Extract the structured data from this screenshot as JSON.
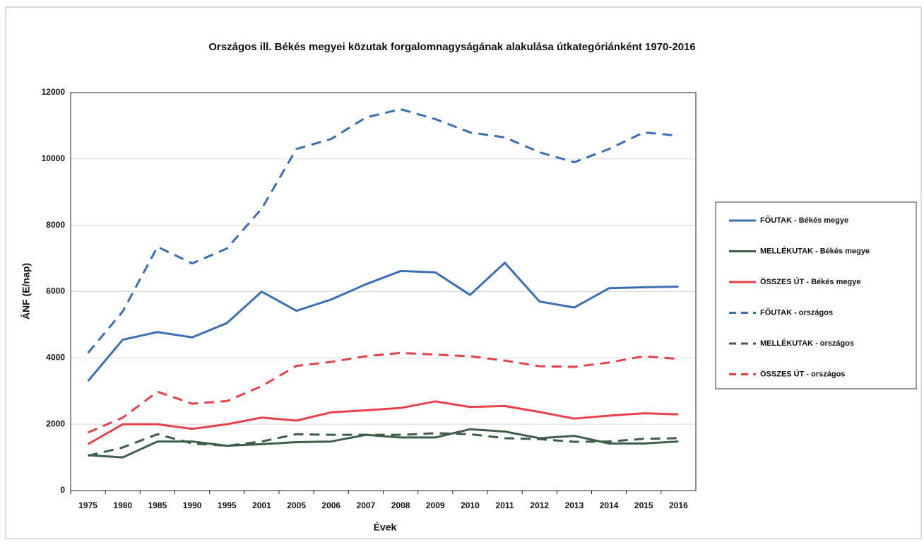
{
  "chart_data": {
    "type": "line",
    "title": "Országos ill. Békés megyei közutak forgalomnagyságának alakulása útkategóriánként 1970-2016",
    "x_label": "Évek",
    "y_label": "ÁNF (E/nap)",
    "categories": [
      "1975",
      "1980",
      "1985",
      "1990",
      "1995",
      "2001",
      "2005",
      "2006",
      "2007",
      "2008",
      "2009",
      "2010",
      "2011",
      "2012",
      "2013",
      "2014",
      "2015",
      "2016"
    ],
    "series": [
      {
        "name": "FŐUTAK - Békés megye",
        "color": "#3a6fb5",
        "dashed": false,
        "values": [
          3300,
          4550,
          4780,
          4620,
          5050,
          6000,
          5420,
          5760,
          6220,
          6620,
          6580,
          5900,
          6870,
          5700,
          5520,
          6100,
          6130,
          6150
        ]
      },
      {
        "name": "MELLÉKUTAK - Békés megye",
        "color": "#3d5e4a",
        "dashed": false,
        "values": [
          1070,
          1000,
          1480,
          1480,
          1350,
          1400,
          1460,
          1480,
          1680,
          1600,
          1600,
          1850,
          1780,
          1580,
          1650,
          1420,
          1420,
          1480
        ]
      },
      {
        "name": "ÖSSZES ÚT - Békés megye",
        "color": "#e8414a",
        "dashed": false,
        "values": [
          1400,
          2000,
          2000,
          1860,
          2000,
          2200,
          2110,
          2360,
          2420,
          2490,
          2690,
          2520,
          2550,
          2370,
          2170,
          2260,
          2330,
          2300
        ]
      },
      {
        "name": "FŐUTAK - országos",
        "color": "#3a6fb5",
        "dashed": true,
        "values": [
          4150,
          5400,
          7350,
          6850,
          7300,
          8500,
          10300,
          10600,
          11250,
          11500,
          11200,
          10800,
          10650,
          10200,
          9900,
          10300,
          10800,
          10700
        ]
      },
      {
        "name": "MELLÉKUTAK - országos",
        "color": "#3d5e4a",
        "dashed": true,
        "values": [
          1050,
          1300,
          1700,
          1420,
          1350,
          1480,
          1700,
          1680,
          1680,
          1680,
          1730,
          1700,
          1580,
          1550,
          1470,
          1480,
          1560,
          1580
        ]
      },
      {
        "name": "ÖSSZES ÚT - országos",
        "color": "#e8414a",
        "dashed": true,
        "values": [
          1750,
          2200,
          2980,
          2620,
          2700,
          3150,
          3760,
          3880,
          4050,
          4150,
          4100,
          4050,
          3920,
          3750,
          3730,
          3860,
          4050,
          3970
        ]
      }
    ],
    "ylim": [
      0,
      12000
    ],
    "yticks": [
      0,
      2000,
      4000,
      6000,
      8000,
      10000,
      12000
    ],
    "grid": true,
    "legend": "right"
  }
}
